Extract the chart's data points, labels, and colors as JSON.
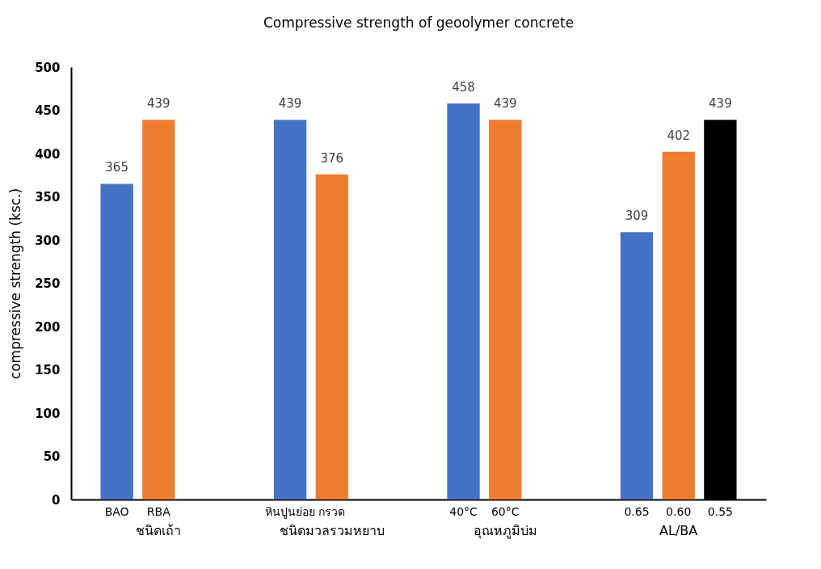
{
  "chart_data": {
    "type": "bar",
    "title": "Compressive strength of geoolymer concrete",
    "ylabel": "compressive strength (ksc.)",
    "categories": [
      "ชนิดเถ้า",
      "ชนิดมวลรวมหยาบ",
      "อุณหภูมิบ่ม",
      "AL/BA"
    ],
    "series": [
      {
        "color": "#4472c4",
        "values": [
          365,
          439,
          458,
          309
        ]
      },
      {
        "color": "#ed7d31",
        "values": [
          439,
          376,
          439,
          402
        ]
      },
      {
        "color": "#000000",
        "values": [
          null,
          null,
          null,
          439
        ]
      }
    ],
    "ylim": [
      0,
      500
    ],
    "yticks": [
      0,
      50,
      100,
      150,
      200,
      250,
      300,
      350,
      400,
      450,
      500
    ],
    "grid": false,
    "data_labels": true,
    "annotations": [
      {
        "text": "BAO",
        "x": "ชนิดเถ้า",
        "y": 0
      },
      {
        "text": "RBA",
        "x": "ชนิดเถ้า",
        "y": 0
      },
      {
        "text": "หินปูนย่อย",
        "x": "ชนิดมวลรวมหยาบ",
        "y": 0
      },
      {
        "text": "กรวด",
        "x": "ชนิดมวลรวมหยาบ",
        "y": 0
      },
      {
        "text": "40°C",
        "x": "อุณหภูมิบ่ม",
        "y": 0
      },
      {
        "text": "60°C",
        "x": "อุณหภูมิบ่ม",
        "y": 0
      },
      {
        "text": "0.65",
        "x": "AL/BA",
        "y": 0
      },
      {
        "text": "0.60",
        "x": "AL/BA",
        "y": 0
      },
      {
        "text": "0.55",
        "x": "AL/BA",
        "y": 0
      }
    ]
  }
}
